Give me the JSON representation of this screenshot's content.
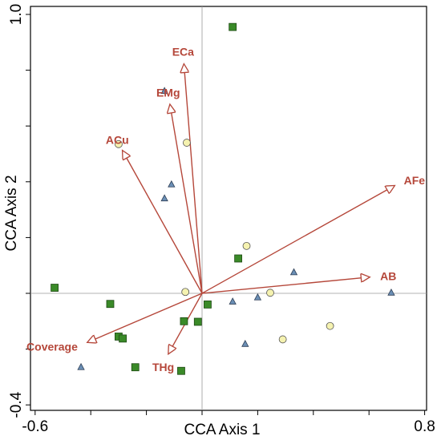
{
  "chart_data": {
    "type": "scatter",
    "xlabel": "CCA Axis 1",
    "ylabel": "CCA Axis 2",
    "xlim": [
      -0.66,
      0.82
    ],
    "ylim": [
      -0.44,
      1.0
    ],
    "xticks": [
      -0.6,
      -0.4,
      -0.2,
      0,
      0.2,
      0.4,
      0.6,
      0.8
    ],
    "xtick_labels": [
      "-0.6",
      "",
      "",
      "",
      "",
      "",
      "",
      "0.8"
    ],
    "yticks": [
      -0.4,
      -0.2,
      0,
      0.2,
      0.4,
      0.6,
      0.8,
      1.0
    ],
    "ytick_labels": [
      "-0.4",
      "",
      "",
      "",
      "",
      "",
      "",
      "1.0"
    ],
    "grid": false,
    "colors": {
      "vectors": "#b5473a",
      "squares": "#3a8a28",
      "circles": "#f5f2b0",
      "triangles": "#6b8fb5",
      "zero_lines": "#9a9a9a"
    },
    "vectors": [
      {
        "label": "ECa",
        "x": -0.065,
        "y": 0.82
      },
      {
        "label": "EMg",
        "x": -0.115,
        "y": 0.675
      },
      {
        "label": "ACu",
        "x": -0.285,
        "y": 0.51
      },
      {
        "label": "AFe",
        "x": 0.69,
        "y": 0.385
      },
      {
        "label": "AB",
        "x": 0.6,
        "y": 0.058
      },
      {
        "label": "Coverage",
        "x": -0.41,
        "y": -0.175
      },
      {
        "label": "THg",
        "x": -0.12,
        "y": -0.215
      }
    ],
    "series": [
      {
        "marker": "square",
        "points": [
          {
            "x": 0.11,
            "y": 0.955
          },
          {
            "x": 0.13,
            "y": 0.125
          },
          {
            "x": -0.53,
            "y": 0.02
          },
          {
            "x": -0.33,
            "y": -0.038
          },
          {
            "x": 0.02,
            "y": -0.04
          },
          {
            "x": -0.065,
            "y": -0.1
          },
          {
            "x": -0.015,
            "y": -0.102
          },
          {
            "x": -0.3,
            "y": -0.155
          },
          {
            "x": -0.285,
            "y": -0.162
          },
          {
            "x": -0.24,
            "y": -0.265
          },
          {
            "x": -0.075,
            "y": -0.278
          }
        ]
      },
      {
        "marker": "circle",
        "points": [
          {
            "x": -0.3,
            "y": 0.535
          },
          {
            "x": -0.055,
            "y": 0.54
          },
          {
            "x": 0.16,
            "y": 0.17
          },
          {
            "x": -0.06,
            "y": 0.005
          },
          {
            "x": 0.245,
            "y": 0.002
          },
          {
            "x": 0.46,
            "y": -0.117
          },
          {
            "x": 0.29,
            "y": -0.165
          }
        ]
      },
      {
        "marker": "triangle",
        "points": [
          {
            "x": -0.135,
            "y": 0.725
          },
          {
            "x": -0.11,
            "y": 0.39
          },
          {
            "x": -0.135,
            "y": 0.34
          },
          {
            "x": 0.33,
            "y": 0.075
          },
          {
            "x": 0.2,
            "y": -0.015
          },
          {
            "x": 0.11,
            "y": -0.03
          },
          {
            "x": 0.68,
            "y": 0.002
          },
          {
            "x": 0.155,
            "y": -0.182
          },
          {
            "x": -0.435,
            "y": -0.265
          }
        ]
      }
    ]
  }
}
